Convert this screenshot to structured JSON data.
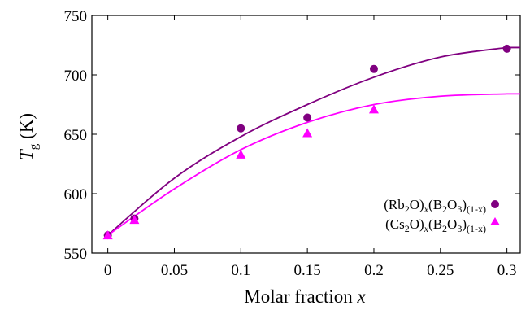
{
  "chart_data": {
    "type": "scatter",
    "xlabel_main": "Molar fraction",
    "xlabel_var": "x",
    "ylabel_main": "T",
    "ylabel_sub": "g",
    "ylabel_unit": "(K)",
    "xlim": [
      -0.012,
      0.31
    ],
    "ylim": [
      550,
      750
    ],
    "xticks": [
      0,
      0.05,
      0.1,
      0.15,
      0.2,
      0.25,
      0.3
    ],
    "xtick_labels": [
      "0",
      "0.05",
      "0.1",
      "0.15",
      "0.2",
      "0.25",
      "0.3"
    ],
    "yticks": [
      550,
      600,
      650,
      700,
      750
    ],
    "ytick_labels": [
      "550",
      "600",
      "650",
      "700",
      "750"
    ],
    "grid": false,
    "legend_position": "lower-right",
    "series": [
      {
        "name": "(Rb2O)x(B2O3)(1-x)",
        "marker": "circle",
        "color": "#800080",
        "x": [
          0,
          0.02,
          0.1,
          0.15,
          0.2,
          0.3
        ],
        "y": [
          565,
          579,
          655,
          664,
          705,
          722
        ],
        "fit": [
          [
            0,
            565
          ],
          [
            0.05,
            613
          ],
          [
            0.1,
            648
          ],
          [
            0.15,
            675
          ],
          [
            0.2,
            698
          ],
          [
            0.25,
            715
          ],
          [
            0.3,
            723
          ]
        ]
      },
      {
        "name": "(Cs2O)x(B2O3)(1-x)",
        "marker": "triangle",
        "color": "#ff00ff",
        "x": [
          0,
          0.02,
          0.1,
          0.15,
          0.2
        ],
        "y": [
          565,
          578,
          633,
          651,
          671
        ],
        "fit": [
          [
            0,
            565
          ],
          [
            0.05,
            604
          ],
          [
            0.1,
            637
          ],
          [
            0.15,
            660
          ],
          [
            0.2,
            675
          ],
          [
            0.25,
            682
          ],
          [
            0.3,
            684
          ]
        ]
      }
    ]
  },
  "legend": [
    {
      "pre": "(Rb",
      "sub1": "2",
      "mid": "O)",
      "var": "x",
      "mid2": "(B",
      "sub2": "2",
      "mid3": "O",
      "sub3": "3",
      "mid4": ")",
      "exp": "(1-x)"
    },
    {
      "pre": "(Cs",
      "sub1": "2",
      "mid": "O)",
      "var": "x",
      "mid2": "(B",
      "sub2": "2",
      "mid3": "O",
      "sub3": "3",
      "mid4": ")",
      "exp": "(1-x)"
    }
  ]
}
